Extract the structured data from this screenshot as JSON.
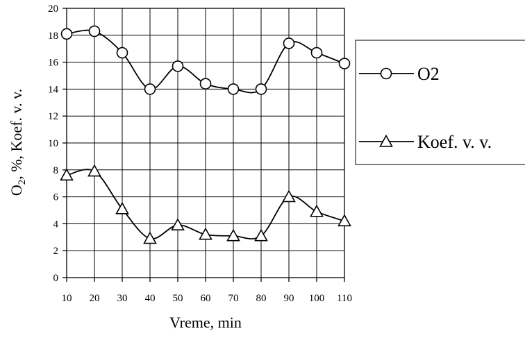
{
  "chart_data": {
    "type": "line",
    "x": [
      10,
      20,
      30,
      40,
      50,
      60,
      70,
      80,
      90,
      100,
      110
    ],
    "series": [
      {
        "name": "O2",
        "marker": "circle",
        "values": [
          18.1,
          18.3,
          16.7,
          14.0,
          15.7,
          14.4,
          14.0,
          14.0,
          17.4,
          16.7,
          15.9
        ]
      },
      {
        "name": "Koef. v. v.",
        "marker": "triangle",
        "values": [
          7.6,
          7.9,
          5.1,
          2.9,
          3.9,
          3.2,
          3.1,
          3.1,
          6.0,
          4.9,
          4.2
        ]
      }
    ],
    "xlabel": "Vreme, min",
    "ylabel_parts": {
      "pre": "O",
      "sub": "2",
      "post": ", %, Koef. v. v."
    },
    "xticks": [
      "10",
      "20",
      "30",
      "40",
      "50",
      "60",
      "70",
      "80",
      "90",
      "100",
      "110"
    ],
    "yticks": [
      "0",
      "2",
      "4",
      "6",
      "8",
      "10",
      "12",
      "14",
      "16",
      "18",
      "20"
    ],
    "xlim": [
      10,
      110
    ],
    "ylim": [
      0,
      20
    ],
    "grid": true,
    "legend": "right",
    "line_color": "#000000",
    "marker_fill": "#ffffff"
  }
}
